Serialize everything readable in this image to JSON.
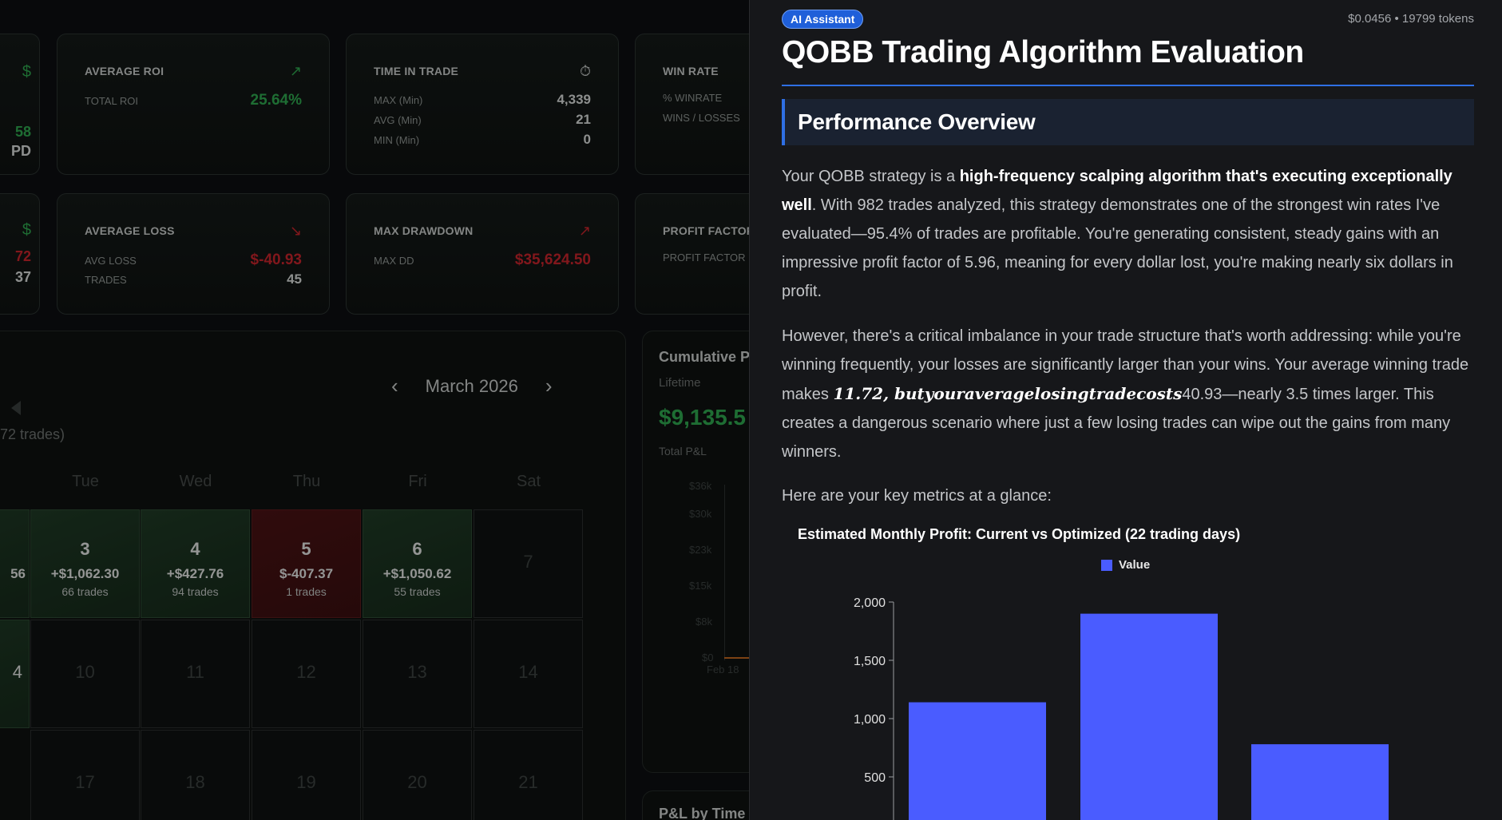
{
  "dashboard": {
    "cards_row1": [
      {
        "title": "AVERAGE ROI",
        "icon": "trend-up-icon",
        "rows": [
          {
            "label": "TOTAL ROI",
            "value": "25.64%",
            "tone": "green"
          }
        ]
      },
      {
        "title": "TIME IN TRADE",
        "icon": "stopwatch-icon",
        "rows": [
          {
            "label": "MAX (Min)",
            "value": "4,339"
          },
          {
            "label": "AVG (Min)",
            "value": "21"
          },
          {
            "label": "MIN (Min)",
            "value": "0"
          }
        ]
      },
      {
        "title": "WIN RATE",
        "rows": [
          {
            "label": "% WINRATE"
          },
          {
            "label": "WINS / LOSSES"
          }
        ]
      }
    ],
    "cards_row2": [
      {
        "title": "AVERAGE LOSS",
        "icon": "trend-down-icon",
        "rows": [
          {
            "label": "AVG LOSS",
            "value": "$-40.93",
            "tone": "red"
          },
          {
            "label": "TRADES",
            "value": "45"
          }
        ]
      },
      {
        "title": "MAX DRAWDOWN",
        "icon": "trend-up-icon",
        "rows": [
          {
            "label": "MAX DD",
            "value": "$35,624.50",
            "tone": "red"
          }
        ]
      },
      {
        "title": "PROFIT FACTOR",
        "rows": [
          {
            "label": "PROFIT FACTOR"
          }
        ]
      }
    ],
    "partial_left": {
      "r1a": "$",
      "r1b": "58",
      "r1c": "PD",
      "r2a": "$",
      "r2b": "72",
      "r2c": "37"
    },
    "calendar": {
      "month": "March 2026",
      "prev_icon": "‹",
      "next_icon": "›",
      "partial_trades": "72 trades)",
      "weekdays": [
        "Tue",
        "Wed",
        "Thu",
        "Fri",
        "Sat"
      ],
      "week1": [
        {
          "day": "3",
          "pnl": "+$1,062.30",
          "trades": "66 trades",
          "tone": "win"
        },
        {
          "day": "4",
          "pnl": "+$427.76",
          "trades": "94 trades",
          "tone": "win"
        },
        {
          "day": "5",
          "pnl": "$-407.37",
          "trades": "1 trades",
          "tone": "loss"
        },
        {
          "day": "6",
          "pnl": "+$1,050.62",
          "trades": "55 trades",
          "tone": "win"
        },
        {
          "day": "7"
        }
      ],
      "week1_partial": "56",
      "week2": [
        "10",
        "11",
        "12",
        "13",
        "14"
      ],
      "week2_partial": "4",
      "week3": [
        "17",
        "18",
        "19",
        "20",
        "21"
      ]
    },
    "cumulative": {
      "title": "Cumulative P",
      "subtitle": "Lifetime",
      "value": "$9,135.5",
      "value_label": "Total P&L",
      "yticks": [
        "$36k",
        "$30k",
        "$23k",
        "$15k",
        "$8k",
        "$0"
      ],
      "xtick": "Feb 18",
      "bottom_title": "P&L by Time"
    }
  },
  "assistant": {
    "badge": "AI Assistant",
    "cost": "$0.0456 • 19799 tokens",
    "title": "QOBB Trading Algorithm Evaluation",
    "section": "Performance Overview",
    "p1_a": "Your QOBB strategy is a ",
    "p1_b": "high-frequency scalping algorithm that's executing exceptionally well",
    "p1_c": ". With 982 trades analyzed, this strategy demonstrates one of the strongest win rates I've evaluated—95.4% of trades are profitable. You're generating consistent, steady gains with an impressive profit factor of 5.96, meaning for every dollar lost, you're making nearly six dollars in profit.",
    "p2_a": "However, there's a critical imbalance in your trade structure that's worth addressing: while you're winning frequently, your losses are significantly larger than your wins. Your average winning trade makes ",
    "p2_b": "11.72, butyouraveragelosingtradecosts",
    "p2_c": "40.93—nearly 3.5 times larger. This creates a dangerous scenario where just a few losing trades can wipe out the gains from many winners.",
    "p3": "Here are your key metrics at a glance:"
  },
  "chart_data": {
    "type": "bar",
    "title": "Estimated Monthly Profit: Current vs Optimized (22 trading days)",
    "series": [
      {
        "name": "Value",
        "values": [
          1140,
          1900,
          780
        ],
        "color": "#4a5cff"
      }
    ],
    "ylim": [
      0,
      2000
    ],
    "yticks": [
      "2,000",
      "1,500",
      "1,000",
      "500"
    ],
    "grid": false,
    "legend": "top-center"
  }
}
